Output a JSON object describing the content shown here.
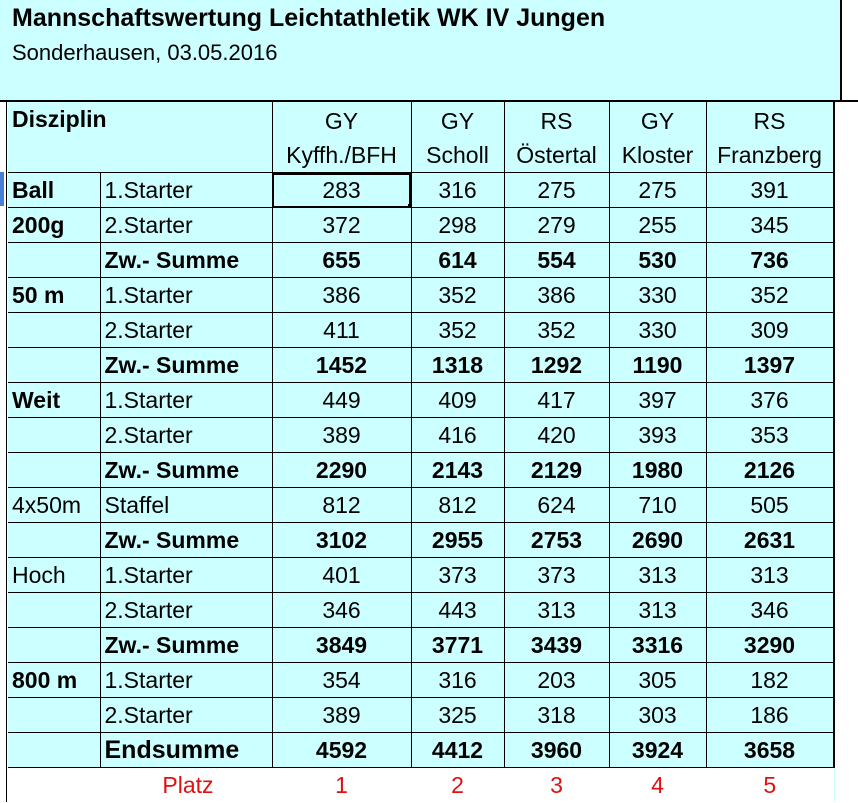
{
  "title": "Mannschaftswertung Leichtathletik WK IV Jungen",
  "subtitle": "Sonderhausen, 03.05.2016",
  "header": {
    "disziplin": "Disziplin",
    "teams": [
      {
        "type": "GY",
        "name": "Kyffh./BFH"
      },
      {
        "type": "GY",
        "name": "Scholl"
      },
      {
        "type": "RS",
        "name": "Östertal"
      },
      {
        "type": "GY",
        "name": "Kloster"
      },
      {
        "type": "RS",
        "name": "Franzberg"
      }
    ]
  },
  "rows": [
    {
      "disc": "Ball",
      "label": "1.Starter",
      "values": [
        "283",
        "316",
        "275",
        "275",
        "391"
      ],
      "bold_disc": true,
      "kind": "starter"
    },
    {
      "disc": "200g",
      "label": "2.Starter",
      "values": [
        "372",
        "298",
        "279",
        "255",
        "345"
      ],
      "bold_disc": true,
      "kind": "starter"
    },
    {
      "disc": "",
      "label": "Zw.- Summe",
      "values": [
        "655",
        "614",
        "554",
        "530",
        "736"
      ],
      "kind": "sum"
    },
    {
      "disc": "50 m",
      "label": "1.Starter",
      "values": [
        "386",
        "352",
        "386",
        "330",
        "352"
      ],
      "bold_disc": true,
      "kind": "starter"
    },
    {
      "disc": "",
      "label": "2.Starter",
      "values": [
        "411",
        "352",
        "352",
        "330",
        "309"
      ],
      "kind": "starter"
    },
    {
      "disc": "",
      "label": "Zw.- Summe",
      "values": [
        "1452",
        "1318",
        "1292",
        "1190",
        "1397"
      ],
      "kind": "sum"
    },
    {
      "disc": "Weit",
      "label": "1.Starter",
      "values": [
        "449",
        "409",
        "417",
        "397",
        "376"
      ],
      "bold_disc": true,
      "kind": "starter"
    },
    {
      "disc": "",
      "label": "2.Starter",
      "values": [
        "389",
        "416",
        "420",
        "393",
        "353"
      ],
      "kind": "starter"
    },
    {
      "disc": "",
      "label": "Zw.- Summe",
      "values": [
        "2290",
        "2143",
        "2129",
        "1980",
        "2126"
      ],
      "kind": "sum"
    },
    {
      "disc": "4x50m",
      "label": "Staffel",
      "values": [
        "812",
        "812",
        "624",
        "710",
        "505"
      ],
      "bold_disc": false,
      "kind": "starter"
    },
    {
      "disc": "",
      "label": "Zw.- Summe",
      "values": [
        "3102",
        "2955",
        "2753",
        "2690",
        "2631"
      ],
      "kind": "sum"
    },
    {
      "disc": "Hoch",
      "label": "1.Starter",
      "values": [
        "401",
        "373",
        "373",
        "313",
        "313"
      ],
      "bold_disc": false,
      "kind": "starter"
    },
    {
      "disc": "",
      "label": "2.Starter",
      "values": [
        "346",
        "443",
        "313",
        "313",
        "346"
      ],
      "kind": "starter"
    },
    {
      "disc": "",
      "label": "Zw.- Summe",
      "values": [
        "3849",
        "3771",
        "3439",
        "3316",
        "3290"
      ],
      "kind": "sum"
    },
    {
      "disc": "800 m",
      "label": "1.Starter",
      "values": [
        "354",
        "316",
        "203",
        "305",
        "182"
      ],
      "bold_disc": true,
      "kind": "starter"
    },
    {
      "disc": "",
      "label": "2.Starter",
      "values": [
        "389",
        "325",
        "318",
        "303",
        "186"
      ],
      "kind": "starter"
    },
    {
      "disc": "",
      "label": "Endsumme",
      "values": [
        "4592",
        "4412",
        "3960",
        "3924",
        "3658"
      ],
      "kind": "end"
    }
  ],
  "platz": {
    "label": "Platz",
    "values": [
      "1",
      "2",
      "3",
      "4",
      "5"
    ]
  },
  "colors": {
    "background": "#ccffff",
    "platz_text": "#e01010"
  }
}
